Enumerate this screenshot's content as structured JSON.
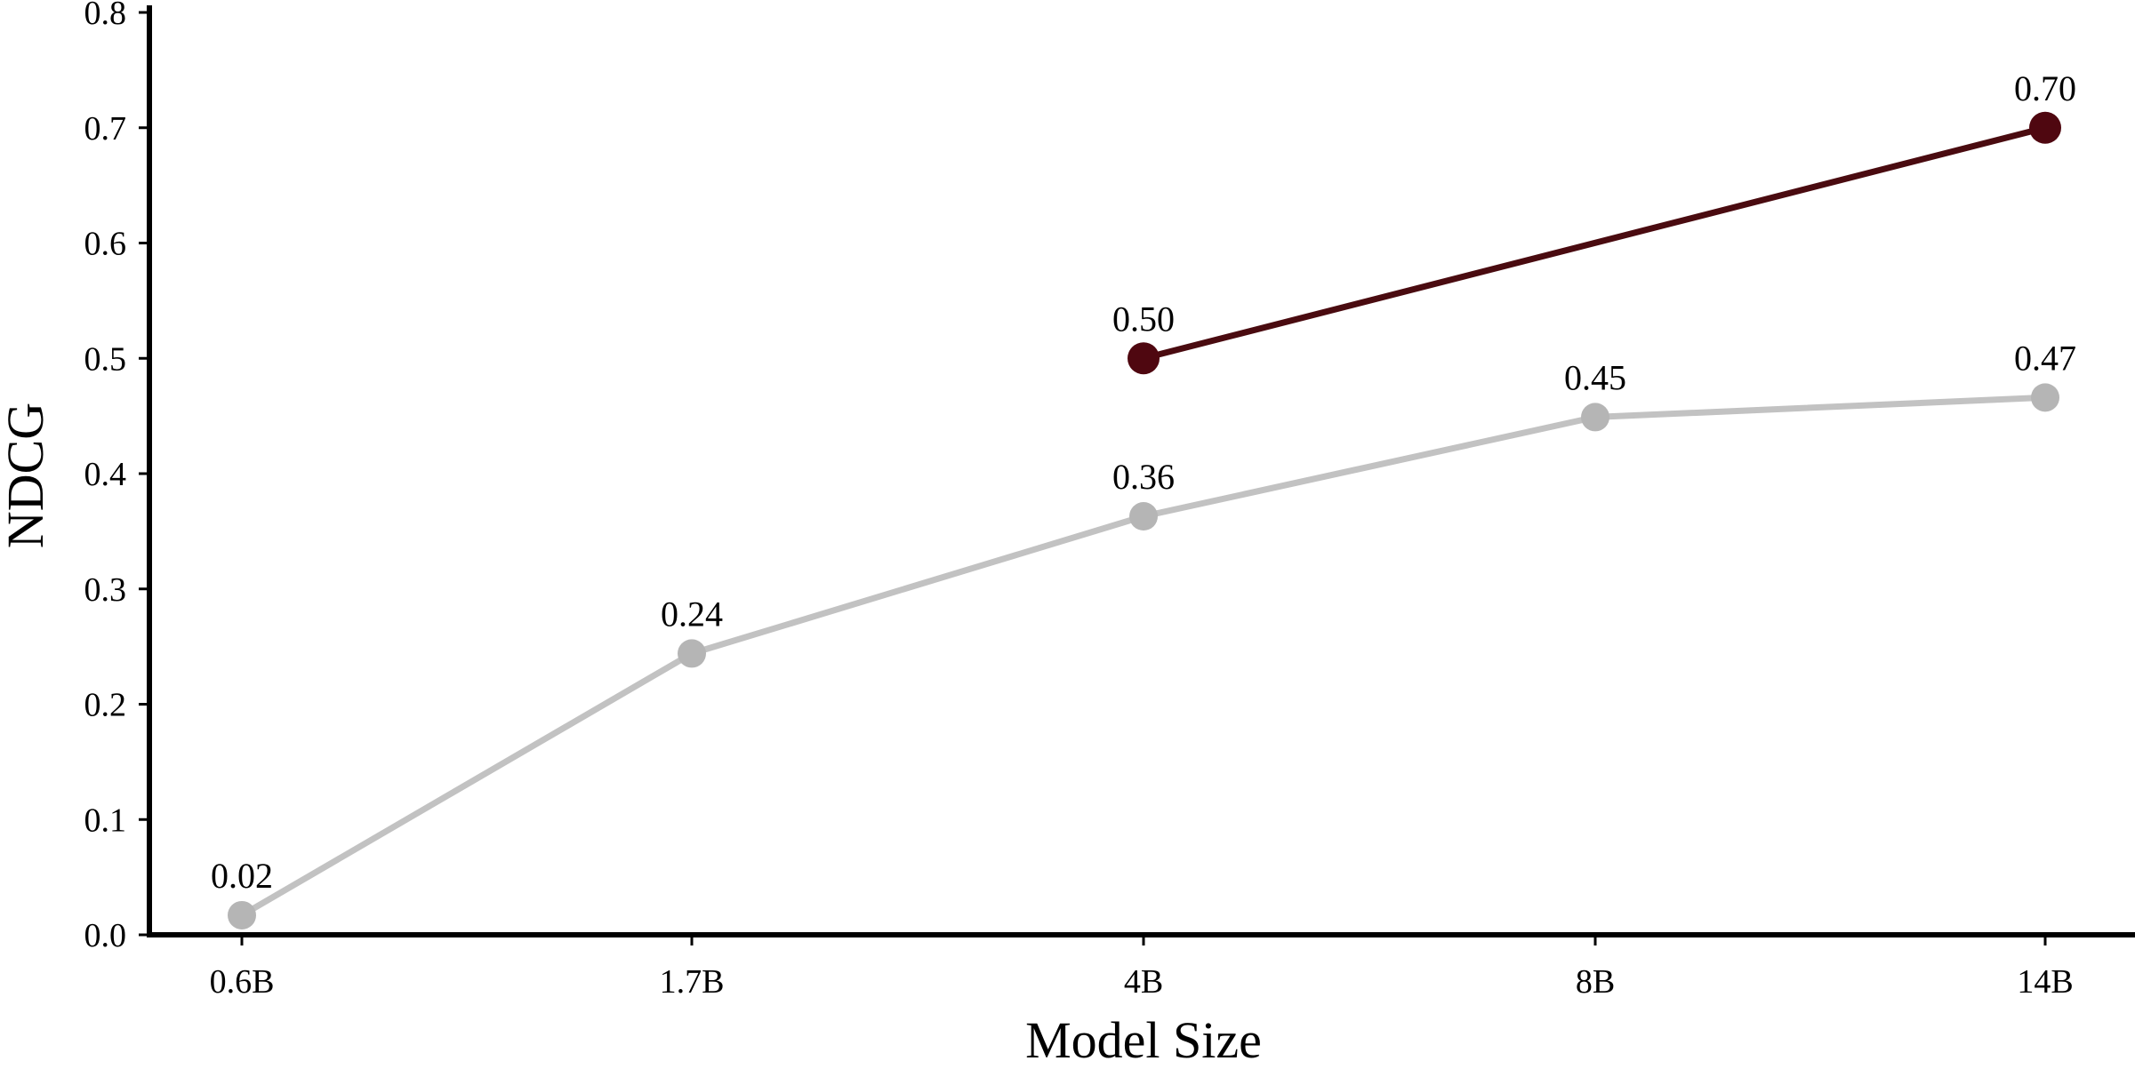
{
  "chart_data": {
    "type": "line",
    "title": "",
    "xlabel": "Model Size",
    "ylabel": "NDCG",
    "categories": [
      "0.6B",
      "1.7B",
      "4B",
      "8B",
      "14B"
    ],
    "ylim": [
      0,
      0.8
    ],
    "yticks": [
      "0.0",
      "0.1",
      "0.2",
      "0.3",
      "0.4",
      "0.5",
      "0.6",
      "0.7",
      "0.8"
    ],
    "grid": false,
    "legend": "none",
    "series": [
      {
        "color": "#c2c2c2",
        "marker_color": "#b5b5b5",
        "values": [
          0.017,
          0.244,
          0.363,
          0.449,
          0.466
        ],
        "labels": [
          "0.02",
          "0.24",
          "0.36",
          "0.45",
          "0.47"
        ]
      },
      {
        "color": "#4a0b10",
        "marker_color": "#4f0710",
        "values": [
          null,
          null,
          0.5,
          null,
          0.7
        ],
        "labels": [
          null,
          null,
          "0.50",
          null,
          "0.70"
        ]
      }
    ]
  }
}
